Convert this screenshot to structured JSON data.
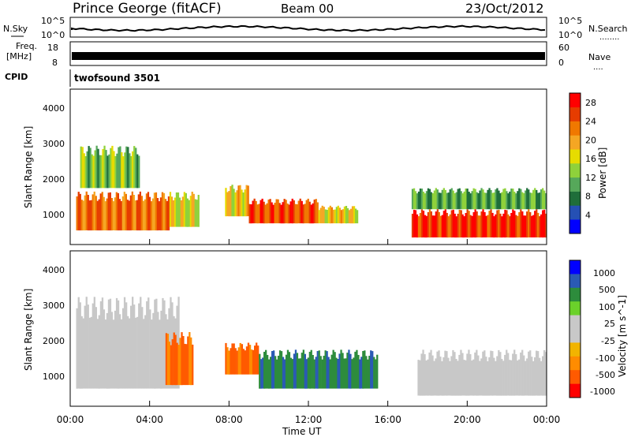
{
  "header": {
    "station": "Prince George (fitACF)",
    "beam": "Beam 00",
    "date": "23/Oct/2012"
  },
  "top_panels": {
    "nsky_label": "N.Sky",
    "nsearch_label": "N.Search",
    "nsearch_dots": "........",
    "noise_ticks": [
      "10^5",
      "10^0"
    ],
    "freq_label_1": "Freq.",
    "freq_label_2": "[MHz]",
    "freq_ticks": [
      "18",
      "8"
    ],
    "nave_label": "Nave",
    "nave_dots": "....",
    "nave_ticks": [
      "60",
      "0"
    ],
    "cpid_label": "CPID",
    "cpid_value": "twofsound 3501"
  },
  "colors": {
    "power_scale": [
      "#0000ff",
      "#2550b4",
      "#1f6e3a",
      "#56a85a",
      "#8fd13b",
      "#e6dc00",
      "#f5a623",
      "#f07800",
      "#e63c00",
      "#ff0000"
    ],
    "velocity_scale": [
      "#ff0000",
      "#ff5a00",
      "#ff8c00",
      "#f2b400",
      "#c8c8c8",
      "#c8c8c8",
      "#6bd12a",
      "#2d8c3c",
      "#2a5ab4",
      "#0000ff"
    ]
  },
  "chart_data": [
    {
      "type": "heatmap",
      "name_hint": "power",
      "ylabel": "Slant Range [km]",
      "y_ticks": [
        "1000",
        "2000",
        "3000",
        "4000"
      ],
      "ylim": [
        200,
        4600
      ],
      "x_ticks": [
        "00:00",
        "04:00",
        "08:00",
        "12:00",
        "16:00",
        "20:00",
        "00:00"
      ],
      "colorbar_label": "Power [dB]",
      "colorbar_ticks": [
        "4",
        "8",
        "12",
        "16",
        "20",
        "24",
        "28"
      ],
      "colorbar_range": [
        0,
        30
      ],
      "regions": [
        {
          "t": [
            0.3,
            5.0
          ],
          "r": [
            600,
            1700
          ],
          "value": 24
        },
        {
          "t": [
            0.5,
            3.5
          ],
          "r": [
            1800,
            3000
          ],
          "value": 12
        },
        {
          "t": [
            5.0,
            6.5
          ],
          "r": [
            700,
            1700
          ],
          "value": 16
        },
        {
          "t": [
            7.8,
            9.0
          ],
          "r": [
            1000,
            1900
          ],
          "value": 18
        },
        {
          "t": [
            9.0,
            12.5
          ],
          "r": [
            800,
            1500
          ],
          "value": 26
        },
        {
          "t": [
            12.5,
            14.5
          ],
          "r": [
            800,
            1300
          ],
          "value": 18
        },
        {
          "t": [
            17.2,
            24.0
          ],
          "r": [
            400,
            1200
          ],
          "value": 28
        },
        {
          "t": [
            17.2,
            24.0
          ],
          "r": [
            1200,
            1800
          ],
          "value": 10
        }
      ]
    },
    {
      "type": "heatmap",
      "name_hint": "velocity",
      "ylabel": "Slant Range [km]",
      "y_ticks": [
        "1000",
        "2000",
        "3000",
        "4000"
      ],
      "ylim": [
        200,
        4600
      ],
      "x_ticks": [
        "00:00",
        "04:00",
        "08:00",
        "12:00",
        "16:00",
        "20:00",
        "00:00"
      ],
      "xlabel": "Time UT",
      "colorbar_label": "Velocity [m s^-1]",
      "colorbar_ticks": [
        "1000",
        "500",
        "100",
        "25",
        "-25",
        "-100",
        "-500",
        "-1000"
      ],
      "regions": [
        {
          "t": [
            0.3,
            5.5
          ],
          "r": [
            700,
            3300
          ],
          "value": 0
        },
        {
          "t": [
            4.8,
            6.2
          ],
          "r": [
            800,
            2300
          ],
          "value": -700
        },
        {
          "t": [
            7.8,
            9.5
          ],
          "r": [
            1100,
            2000
          ],
          "value": -700
        },
        {
          "t": [
            9.5,
            15.5
          ],
          "r": [
            700,
            1800
          ],
          "value": 300
        },
        {
          "t": [
            17.5,
            24.0
          ],
          "r": [
            500,
            1800
          ],
          "value": 0
        }
      ]
    }
  ]
}
